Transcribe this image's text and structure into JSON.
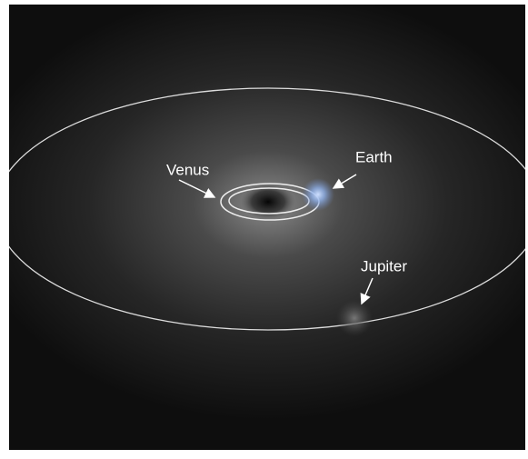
{
  "annotations": [
    {
      "label": "Venus"
    },
    {
      "label": "Earth"
    },
    {
      "label": "Jupiter"
    }
  ]
}
